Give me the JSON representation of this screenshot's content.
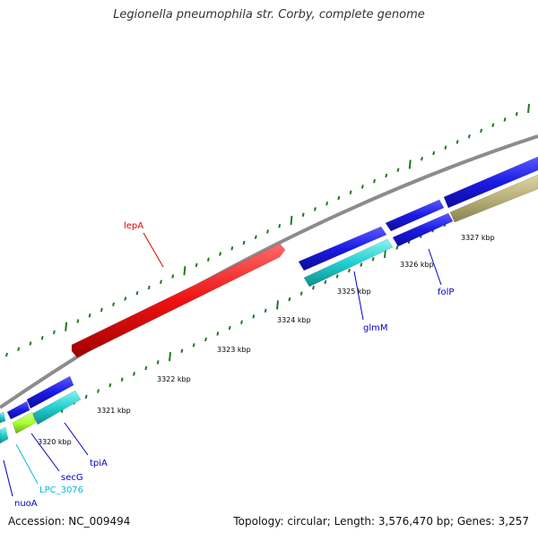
{
  "title": "Legionella pneumophila str. Corby, complete genome",
  "footer": {
    "accession": "Accession: NC_009494",
    "summary": "Topology: circular; Length: 3,576,470 bp; Genes: 3,257"
  },
  "colors": {
    "backbone": "#8c8c8c",
    "tick": "#1f7a1f",
    "blue_gene": "#1a1ae6",
    "red_gene": "#ee1111",
    "cyan_gene": "#1fd0d0",
    "olive_gene": "#b8b078",
    "lime_gene": "#aaff33",
    "blue_label": "#0000cc",
    "red_label": "#dd0000",
    "cyan_label": "#00bbdd"
  },
  "scale_labels": [
    "3320 kbp",
    "3321 kbp",
    "3322 kbp",
    "3323 kbp",
    "3324 kbp",
    "3325 kbp",
    "3326 kbp",
    "3327 kbp"
  ],
  "gene_labels": [
    {
      "name": "lepA",
      "color": "red"
    },
    {
      "name": "glmM",
      "color": "blue"
    },
    {
      "name": "folP",
      "color": "blue"
    },
    {
      "name": "tpiA",
      "color": "blue"
    },
    {
      "name": "secG",
      "color": "blue"
    },
    {
      "name": "LPC_3076",
      "color": "cyan"
    },
    {
      "name": "nuoA",
      "color": "blue"
    }
  ]
}
